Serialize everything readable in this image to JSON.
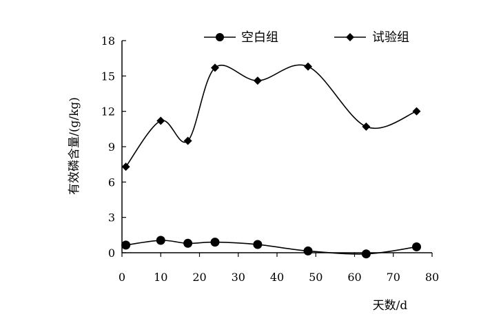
{
  "chart_data": {
    "type": "line",
    "title": "",
    "xlabel": "天数/d",
    "ylabel": "有效磷含量/(g/kg)",
    "xlim": [
      0,
      80
    ],
    "ylim": [
      0,
      18
    ],
    "xticks": [
      0,
      10,
      20,
      30,
      40,
      50,
      60,
      70,
      80
    ],
    "yticks": [
      0,
      3,
      6,
      9,
      12,
      15,
      18
    ],
    "grid": false,
    "smooth": true,
    "legend": {
      "position": "top",
      "entries": [
        "空白组",
        "试验组"
      ]
    },
    "series": [
      {
        "name": "空白组",
        "marker": "circle",
        "color": "#000000",
        "x": [
          1,
          10,
          17,
          24,
          35,
          48,
          63,
          76
        ],
        "y": [
          0.65,
          1.05,
          0.8,
          0.9,
          0.7,
          0.15,
          -0.1,
          0.5
        ]
      },
      {
        "name": "试验组",
        "marker": "diamond",
        "color": "#000000",
        "x": [
          1,
          10,
          17,
          24,
          35,
          48,
          63,
          76
        ],
        "y": [
          7.3,
          11.2,
          9.5,
          15.7,
          14.6,
          15.8,
          10.7,
          12.0
        ]
      }
    ]
  }
}
